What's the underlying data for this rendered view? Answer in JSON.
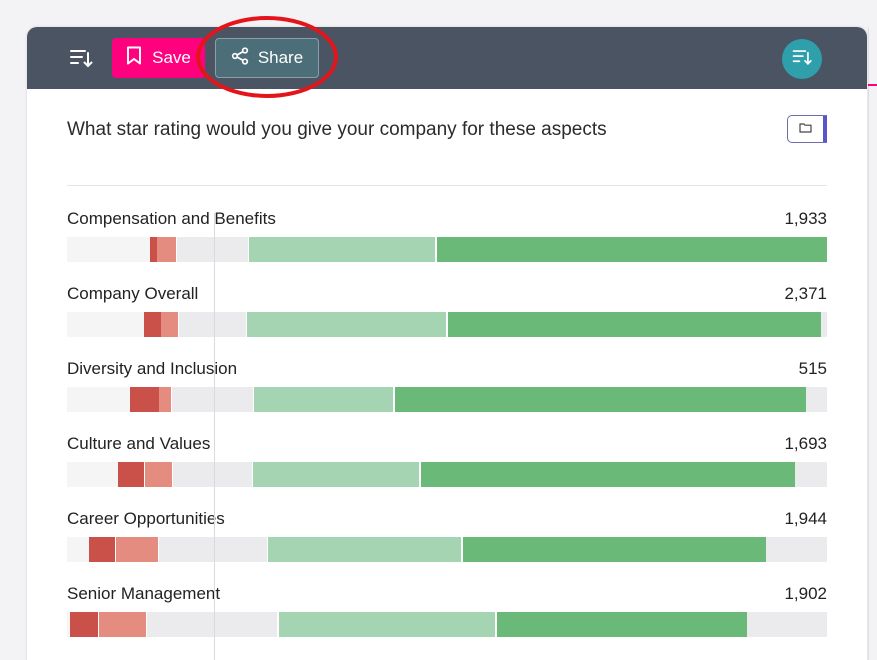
{
  "toolbar": {
    "save_label": "Save",
    "share_label": "Share"
  },
  "colors": {
    "toolbar_bg": "#4b5463",
    "save_bg": "#ff007f",
    "share_bg": "#4c6e79",
    "round_bg": "#2e9fab",
    "highlight": "#e4141b",
    "one_star": "#c9514a",
    "two_star": "#e48c80",
    "neutral": "#ebebee",
    "four_star": "#a5d4b2",
    "five_star": "#6ab978"
  },
  "question": "What star rating would you give your company for these aspects",
  "rows": [
    {
      "label": "Compensation and Benefits",
      "count": "1,933"
    },
    {
      "label": "Company Overall",
      "count": "2,371"
    },
    {
      "label": "Diversity and Inclusion",
      "count": "515"
    },
    {
      "label": "Culture and Values",
      "count": "1,693"
    },
    {
      "label": "Career Opportunities",
      "count": "1,944"
    },
    {
      "label": "Senior Management",
      "count": "1,902"
    }
  ]
}
